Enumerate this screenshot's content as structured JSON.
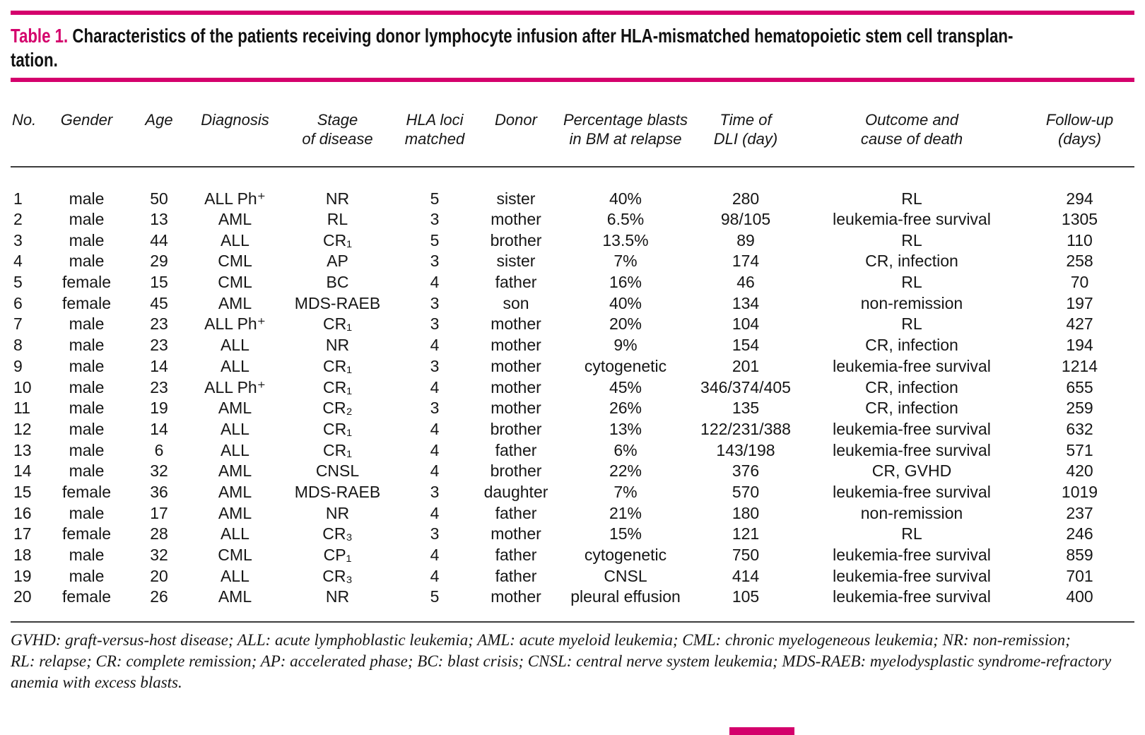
{
  "colors": {
    "accent": "#d4006c",
    "rule": "#3d3d3d",
    "text": "#161616"
  },
  "title": {
    "label": "Table 1.",
    "text": "Characteristics of the patients receiving donor lymphocyte infusion after HLA-mismatched hematopoietic stem cell transplan-\ntation."
  },
  "table": {
    "columns": [
      {
        "key": "no",
        "label": "No."
      },
      {
        "key": "gender",
        "label": "Gender"
      },
      {
        "key": "age",
        "label": "Age"
      },
      {
        "key": "diagnosis",
        "label": "Diagnosis"
      },
      {
        "key": "stage",
        "label": "Stage\nof disease"
      },
      {
        "key": "hla",
        "label": "HLA loci\nmatched"
      },
      {
        "key": "donor",
        "label": "Donor"
      },
      {
        "key": "blasts",
        "label": "Percentage blasts\nin BM at relapse"
      },
      {
        "key": "dli",
        "label": "Time of\nDLI (day)"
      },
      {
        "key": "outcome",
        "label": "Outcome and\ncause of death"
      },
      {
        "key": "followup",
        "label": "Follow-up\n(days)"
      }
    ],
    "rows": [
      [
        "1",
        "male",
        "50",
        "ALL Ph⁺",
        "NR",
        "5",
        "sister",
        "40%",
        "280",
        "RL",
        "294"
      ],
      [
        "2",
        "male",
        "13",
        "AML",
        "RL",
        "3",
        "mother",
        "6.5%",
        "98/105",
        "leukemia-free survival",
        "1305"
      ],
      [
        "3",
        "male",
        "44",
        "ALL",
        "CR₁",
        "5",
        "brother",
        "13.5%",
        "89",
        "RL",
        "110"
      ],
      [
        "4",
        "male",
        "29",
        "CML",
        "AP",
        "3",
        "sister",
        "7%",
        "174",
        "CR, infection",
        "258"
      ],
      [
        "5",
        "female",
        "15",
        "CML",
        "BC",
        "4",
        "father",
        "16%",
        "46",
        "RL",
        "70"
      ],
      [
        "6",
        "female",
        "45",
        "AML",
        "MDS-RAEB",
        "3",
        "son",
        "40%",
        "134",
        "non-remission",
        "197"
      ],
      [
        "7",
        "male",
        "23",
        "ALL Ph⁺",
        "CR₁",
        "3",
        "mother",
        "20%",
        "104",
        "RL",
        "427"
      ],
      [
        "8",
        "male",
        "23",
        "ALL",
        "NR",
        "4",
        "mother",
        "9%",
        "154",
        "CR, infection",
        "194"
      ],
      [
        "9",
        "male",
        "14",
        "ALL",
        "CR₁",
        "3",
        "mother",
        "cytogenetic",
        "201",
        "leukemia-free survival",
        "1214"
      ],
      [
        "10",
        "male",
        "23",
        "ALL Ph⁺",
        "CR₁",
        "4",
        "mother",
        "45%",
        "346/374/405",
        "CR, infection",
        "655"
      ],
      [
        "11",
        "male",
        "19",
        "AML",
        "CR₂",
        "3",
        "mother",
        "26%",
        "135",
        "CR, infection",
        "259"
      ],
      [
        "12",
        "male",
        "14",
        "ALL",
        "CR₁",
        "4",
        "brother",
        "13%",
        "122/231/388",
        "leukemia-free survival",
        "632"
      ],
      [
        "13",
        "male",
        "6",
        "ALL",
        "CR₁",
        "4",
        "father",
        "6%",
        "143/198",
        "leukemia-free survival",
        "571"
      ],
      [
        "14",
        "male",
        "32",
        "AML",
        "CNSL",
        "4",
        "brother",
        "22%",
        "376",
        "CR, GVHD",
        "420"
      ],
      [
        "15",
        "female",
        "36",
        "AML",
        "MDS-RAEB",
        "3",
        "daughter",
        "7%",
        "570",
        "leukemia-free survival",
        "1019"
      ],
      [
        "16",
        "male",
        "17",
        "AML",
        "NR",
        "4",
        "father",
        "21%",
        "180",
        "non-remission",
        "237"
      ],
      [
        "17",
        "female",
        "28",
        "ALL",
        "CR₃",
        "3",
        "mother",
        "15%",
        "121",
        "RL",
        "246"
      ],
      [
        "18",
        "male",
        "32",
        "CML",
        "CP₁",
        "4",
        "father",
        "cytogenetic",
        "750",
        "leukemia-free survival",
        "859"
      ],
      [
        "19",
        "male",
        "20",
        "ALL",
        "CR₃",
        "4",
        "father",
        "CNSL",
        "414",
        "leukemia-free survival",
        "701"
      ],
      [
        "20",
        "female",
        "26",
        "AML",
        "NR",
        "5",
        "mother",
        "pleural effusion",
        "105",
        "leukemia-free survival",
        "400"
      ]
    ]
  },
  "footnote": {
    "text": "GVHD: graft-versus-host disease; ALL: acute lymphoblastic leukemia; AML: acute myeloid leukemia; CML: chronic myelogeneous leukemia; NR: non-remission;\nRL: relapse; CR: complete remission; AP: accelerated phase; BC: blast crisis; CNSL: central nerve system leukemia; MDS-RAEB: myelodysplastic syndrome-refractory\nanemia with excess blasts."
  }
}
